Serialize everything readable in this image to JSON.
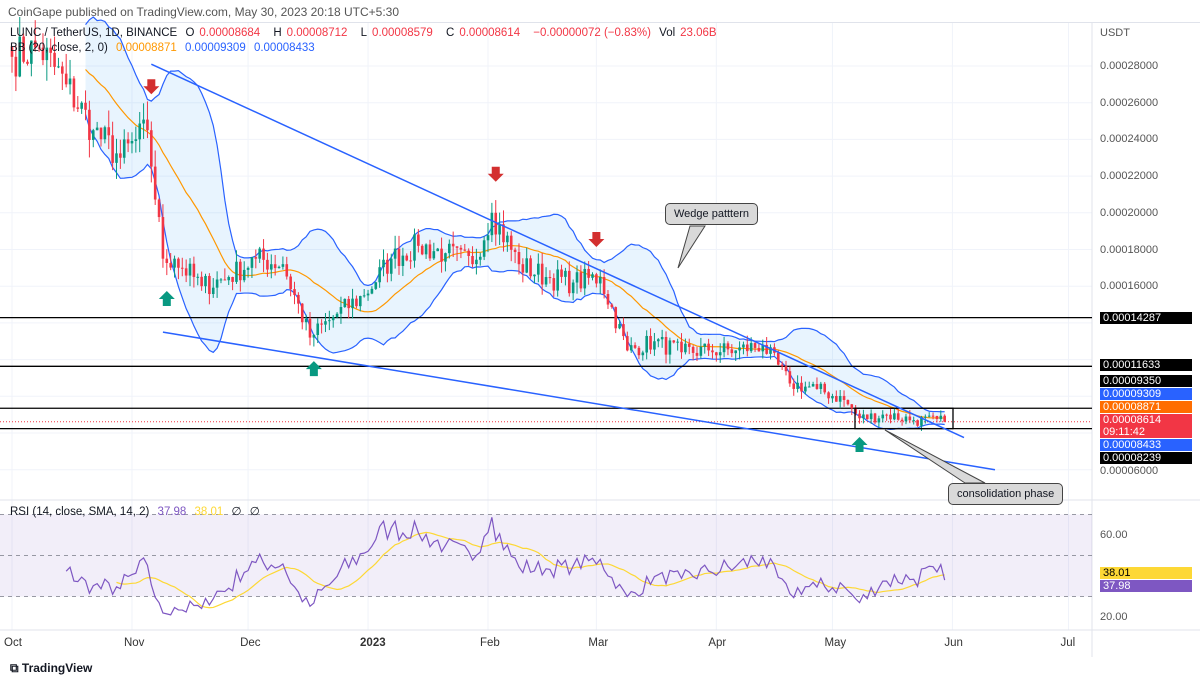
{
  "published": "CoinGape published on TradingView.com, May 30, 2023 20:18 UTC+5:30",
  "legend": {
    "symbol": "LUNC / TetherUS, 1D, BINANCE",
    "o_label": "O",
    "o": "0.00008684",
    "h_label": "H",
    "h": "0.00008712",
    "l_label": "L",
    "l": "0.00008579",
    "c_label": "C",
    "c": "0.00008614",
    "change": "−0.00000072 (−0.83%)",
    "vol_label": "Vol",
    "vol": "23.06B",
    "bb": "BB (20, close, 2, 0)",
    "bb_basis": "0.00008871",
    "bb_upper": "0.00009309",
    "bb_lower": "0.00008433"
  },
  "rsi_legend": {
    "name": "RSI (14, close, SMA, 14, 2)",
    "rsi": "37.98",
    "sma": "38.01",
    "v3": "∅",
    "v4": "∅"
  },
  "currency": "USDT",
  "colors": {
    "up": "#089981",
    "down": "#f23645",
    "bb_basis": "#ff9800",
    "bb_band": "#2962ff",
    "wedge": "#2962ff",
    "rsi": "#7e57c2",
    "rsi_sma": "#fdd835"
  },
  "chart_data": {
    "type": "candlestick",
    "title": "LUNC / TetherUS, 1D, BINANCE",
    "ylabel": "USDT",
    "ylim": [
      5.4e-05,
      0.000305
    ],
    "y_ticks": [
      "0.00028000",
      "0.00026000",
      "0.00024000",
      "0.00022000",
      "0.00020000",
      "0.00018000",
      "0.00016000",
      "0.00006000"
    ],
    "x_ticks": [
      {
        "label": "Oct",
        "date": "2022-10-01"
      },
      {
        "label": "Nov",
        "date": "2022-11-01"
      },
      {
        "label": "Dec",
        "date": "2022-12-01"
      },
      {
        "label": "2023",
        "date": "2023-01-01"
      },
      {
        "label": "Feb",
        "date": "2023-02-01"
      },
      {
        "label": "Mar",
        "date": "2023-03-01"
      },
      {
        "label": "Apr",
        "date": "2023-04-01"
      },
      {
        "label": "May",
        "date": "2023-05-01"
      },
      {
        "label": "Jun",
        "date": "2023-06-01"
      },
      {
        "label": "Jul",
        "date": "2023-07-01"
      }
    ],
    "weekly_closes_e4": [
      [
        "2022-10-01",
        2.85
      ],
      [
        "2022-10-08",
        2.9
      ],
      [
        "2022-10-15",
        2.7
      ],
      [
        "2022-10-22",
        2.45
      ],
      [
        "2022-10-29",
        2.3
      ],
      [
        "2022-11-05",
        2.45
      ],
      [
        "2022-11-09",
        1.75
      ],
      [
        "2022-11-12",
        1.75
      ],
      [
        "2022-11-19",
        1.6
      ],
      [
        "2022-11-26",
        1.65
      ],
      [
        "2022-12-03",
        1.75
      ],
      [
        "2022-12-10",
        1.72
      ],
      [
        "2022-12-17",
        1.32
      ],
      [
        "2022-12-24",
        1.45
      ],
      [
        "2022-12-31",
        1.55
      ],
      [
        "2023-01-07",
        1.75
      ],
      [
        "2023-01-14",
        1.82
      ],
      [
        "2023-01-21",
        1.78
      ],
      [
        "2023-01-28",
        1.72
      ],
      [
        "2023-02-02",
        2.0
      ],
      [
        "2023-02-09",
        1.72
      ],
      [
        "2023-02-16",
        1.65
      ],
      [
        "2023-02-23",
        1.62
      ],
      [
        "2023-03-02",
        1.65
      ],
      [
        "2023-03-09",
        1.25
      ],
      [
        "2023-03-16",
        1.3
      ],
      [
        "2023-03-23",
        1.24
      ],
      [
        "2023-03-30",
        1.25
      ],
      [
        "2023-04-06",
        1.25
      ],
      [
        "2023-04-13",
        1.28
      ],
      [
        "2023-04-20",
        1.07
      ],
      [
        "2023-04-27",
        1.04
      ],
      [
        "2023-05-04",
        0.98
      ],
      [
        "2023-05-08",
        0.88
      ],
      [
        "2023-05-15",
        0.9
      ],
      [
        "2023-05-22",
        0.87
      ],
      [
        "2023-05-30",
        0.8614
      ]
    ],
    "horizontal_levels": [
      {
        "value": 0.00014287,
        "label": "0.00014287"
      },
      {
        "value": 0.00011633,
        "label": "0.00011633"
      },
      {
        "value": 9.35e-05,
        "label": "0.00009350"
      },
      {
        "value": 8.239e-05,
        "label": "0.00008239"
      }
    ],
    "price_tags": [
      {
        "label": "0.00009309",
        "color": "#2962ff"
      },
      {
        "label": "0.00008871",
        "color": "#ff6d00"
      },
      {
        "label": "0.00008614",
        "extra": "09:11:42",
        "color": "#f23645"
      },
      {
        "label": "0.00008433",
        "color": "#2962ff"
      }
    ],
    "wedge_upper": [
      [
        "2022-11-06",
        0.000281
      ],
      [
        "2023-06-04",
        7.75e-05
      ]
    ],
    "wedge_lower": [
      [
        "2022-11-09",
        0.000135
      ],
      [
        "2023-06-12",
        6e-05
      ]
    ],
    "sell_arrows": [
      "2022-11-06",
      "2023-02-03",
      "2023-03-01"
    ],
    "buy_arrows": [
      "2022-11-10",
      "2022-12-18",
      "2023-05-08"
    ],
    "annotations": [
      {
        "text": "Wedge patttern"
      },
      {
        "text": "consolidation phase"
      }
    ],
    "rsi": {
      "ticks": [
        "60.00",
        "20.00"
      ],
      "band": [
        30,
        70
      ],
      "current": "37.98",
      "sma_current": "38.01"
    }
  },
  "footer": {
    "logo": "TradingView"
  }
}
